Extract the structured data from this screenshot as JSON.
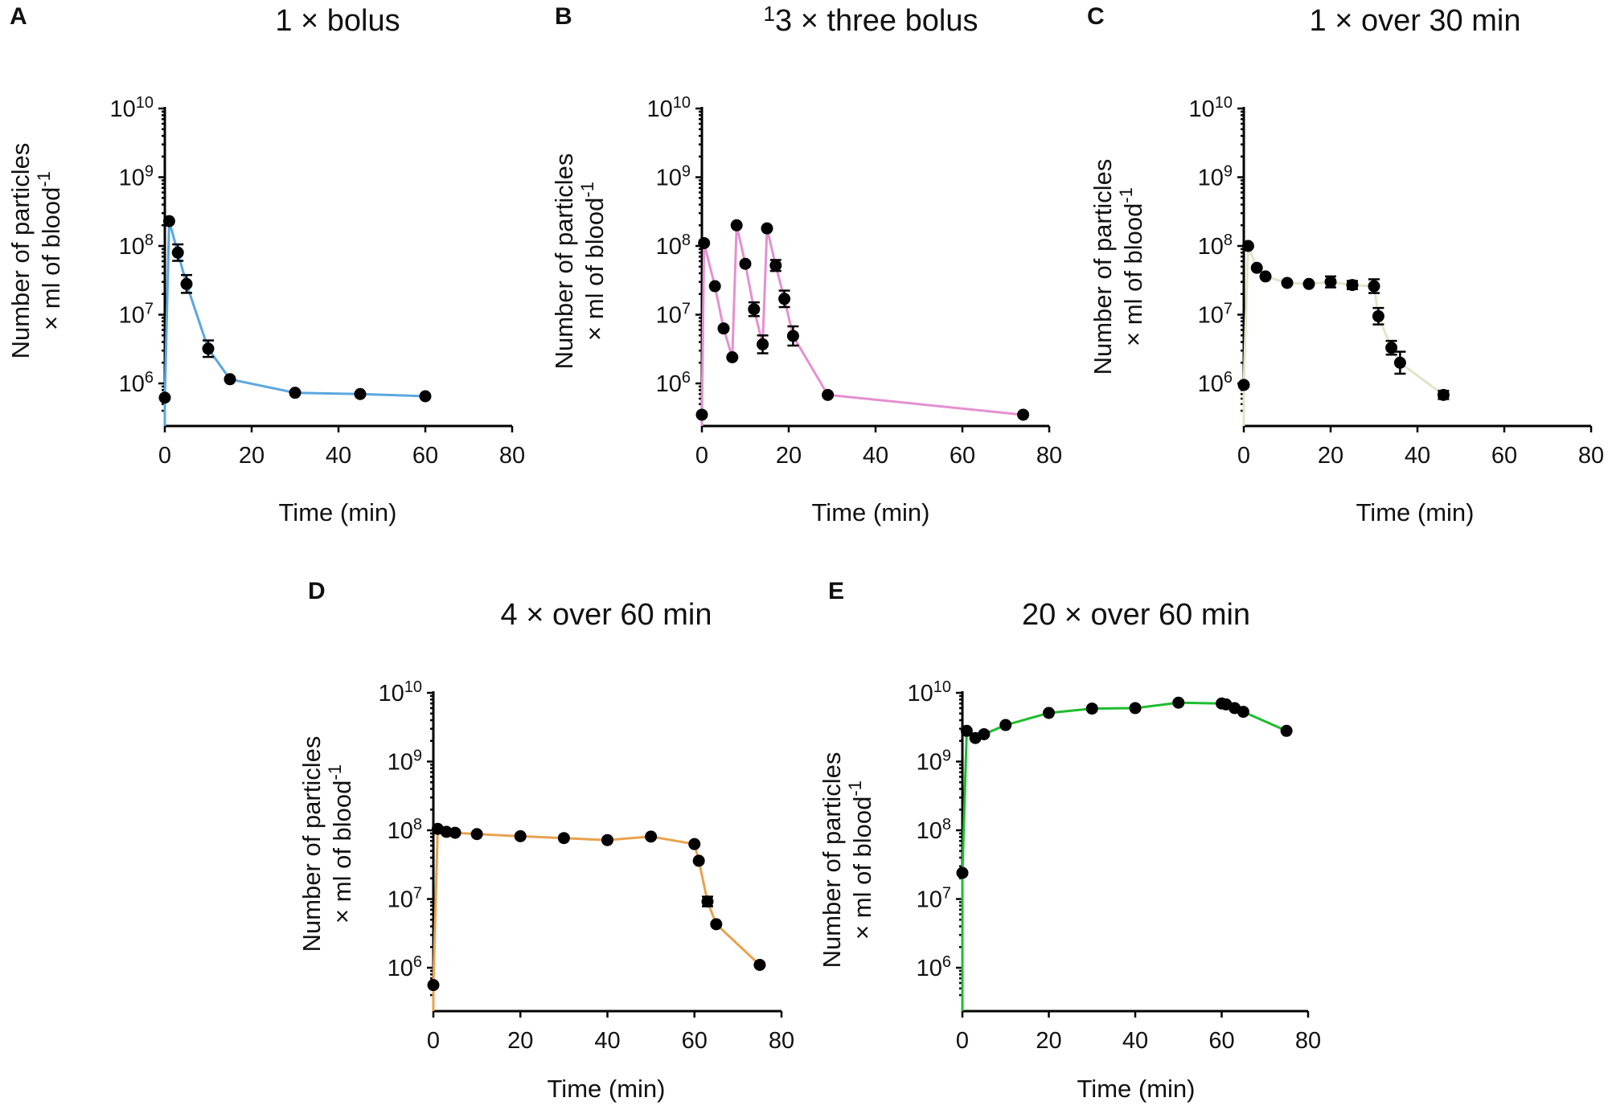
{
  "chart_data": [
    {
      "type": "line",
      "panel_label": "A",
      "title_parts": {
        "prefix": "",
        "num": "",
        "den": "",
        "text": "1 × bolus"
      },
      "color": "#5aa7e0",
      "xlabel": "Time (min)",
      "ylabel_line1": "Number of particles",
      "ylabel_line2": "× ml of blood",
      "ylabel_sup": "-1",
      "xlim": [
        0,
        80
      ],
      "x_ticks": [
        0,
        20,
        40,
        60,
        80
      ],
      "ylim_log10": [
        5.5,
        10
      ],
      "y_tick_exponents": [
        6,
        7,
        8,
        9,
        10
      ],
      "y_tick_base": "10",
      "x": [
        0,
        1,
        3,
        5,
        10,
        15,
        30,
        45,
        60
      ],
      "y": [
        620000,
        230000000,
        80000000,
        28000000,
        3200000,
        1150000,
        730000,
        700000,
        650000
      ],
      "err": [
        0,
        0,
        0.12,
        0.13,
        0.12,
        0,
        0,
        0,
        0
      ]
    },
    {
      "type": "line",
      "panel_label": "B",
      "title_parts": {
        "prefix": "",
        "num": "1",
        "den": "3",
        "text": " × three bolus"
      },
      "color": "#e590d0",
      "xlabel": "Time (min)",
      "ylabel_line1": "Number of particles",
      "ylabel_line2": "× ml of blood",
      "ylabel_sup": "-1",
      "xlim": [
        0,
        80
      ],
      "x_ticks": [
        0,
        20,
        40,
        60,
        80
      ],
      "ylim_log10": [
        5.5,
        10
      ],
      "y_tick_exponents": [
        6,
        7,
        8,
        9,
        10
      ],
      "y_tick_base": "10",
      "x": [
        0,
        0.5,
        3,
        5,
        7,
        8,
        10,
        12,
        14,
        15,
        17,
        19,
        21,
        29,
        74
      ],
      "y": [
        350000,
        110000000,
        26000000,
        6300000,
        2400000,
        200000000,
        55000000,
        12000000,
        3700000,
        180000000,
        52000000,
        17000000,
        4900000,
        680000,
        350000
      ],
      "err": [
        0,
        0,
        0,
        0,
        0,
        0,
        0,
        0.1,
        0.13,
        0,
        0.08,
        0.12,
        0.14,
        0,
        0
      ]
    },
    {
      "type": "line",
      "panel_label": "C",
      "title_parts": {
        "prefix": "",
        "num": "",
        "den": "",
        "text": "1 × over 30 min"
      },
      "color": "#dfe6c8",
      "xlabel": "Time (min)",
      "ylabel_line1": "Number of particles",
      "ylabel_line2": "× ml of blood",
      "ylabel_sup": "-1",
      "xlim": [
        0,
        80
      ],
      "x_ticks": [
        0,
        20,
        40,
        60,
        80
      ],
      "ylim_log10": [
        5.5,
        10
      ],
      "y_tick_exponents": [
        6,
        7,
        8,
        9,
        10
      ],
      "y_tick_base": "10",
      "x": [
        0,
        1,
        3,
        5,
        10,
        15,
        20,
        25,
        30,
        31,
        34,
        36,
        46
      ],
      "y": [
        950000,
        100000000,
        48000000,
        36000000,
        29000000,
        28000000,
        30000000,
        27000000,
        26000000,
        9500000,
        3300000,
        2000000,
        680000
      ],
      "err": [
        0,
        0,
        0,
        0,
        0,
        0,
        0.08,
        0.06,
        0.1,
        0.12,
        0.1,
        0.16,
        0.06
      ]
    },
    {
      "type": "line",
      "panel_label": "D",
      "title_parts": {
        "prefix": "",
        "num": "",
        "den": "",
        "text": "4 × over 60 min"
      },
      "color": "#e8a24e",
      "xlabel": "Time (min)",
      "ylabel_line1": "Number of particles",
      "ylabel_line2": "× ml of blood",
      "ylabel_sup": "-1",
      "xlim": [
        0,
        80
      ],
      "x_ticks": [
        0,
        20,
        40,
        60,
        80
      ],
      "ylim_log10": [
        5.5,
        10
      ],
      "y_tick_exponents": [
        6,
        7,
        8,
        9,
        10
      ],
      "y_tick_base": "10",
      "x": [
        0,
        1,
        3,
        5,
        10,
        20,
        30,
        40,
        50,
        60,
        61,
        63,
        65,
        75
      ],
      "y": [
        560000,
        105000000,
        95000000,
        92000000,
        88000000,
        82000000,
        77000000,
        72000000,
        81000000,
        63000000,
        36000000,
        9200000,
        4300000,
        1100000
      ],
      "err": [
        0,
        0,
        0,
        0,
        0,
        0,
        0,
        0,
        0,
        0,
        0,
        0.07,
        0,
        0
      ]
    },
    {
      "type": "line",
      "panel_label": "E",
      "title_parts": {
        "prefix": "",
        "num": "",
        "den": "",
        "text": "20 × over 60 min"
      },
      "color": "#1ebd2e",
      "xlabel": "Time (min)",
      "ylabel_line1": "Number of particles",
      "ylabel_line2": "× ml of blood",
      "ylabel_sup": "-1",
      "xlim": [
        0,
        80
      ],
      "x_ticks": [
        0,
        20,
        40,
        60,
        80
      ],
      "ylim_log10": [
        5.5,
        10
      ],
      "y_tick_exponents": [
        6,
        7,
        8,
        9,
        10
      ],
      "y_tick_base": "10",
      "x": [
        0,
        1,
        3,
        5,
        10,
        20,
        30,
        40,
        50,
        60,
        61,
        63,
        65,
        75
      ],
      "y": [
        24000000,
        2800000000,
        2200000000,
        2500000000,
        3400000000,
        5100000000,
        5900000000,
        6000000000,
        7200000000,
        7000000000,
        6800000000,
        6000000000,
        5300000000,
        2800000000
      ],
      "err": [
        0,
        0,
        0,
        0,
        0,
        0,
        0,
        0,
        0,
        0,
        0,
        0,
        0,
        0
      ]
    }
  ]
}
